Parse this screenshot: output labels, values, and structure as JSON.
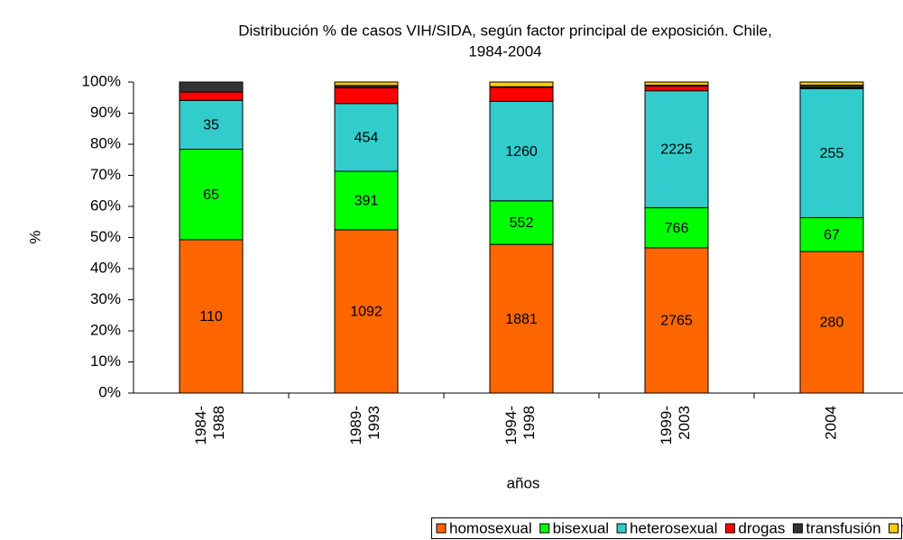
{
  "chart_data": {
    "type": "stacked_bar",
    "title": [
      "Distribución % de casos VIH/SIDA, según factor principal de exposición. Chile,",
      "1984-2004"
    ],
    "x_label": "años",
    "y_label": "%",
    "categories": [
      "1984-1988",
      "1989-1993",
      "1994-1998",
      "1999-2003",
      "2004"
    ],
    "series": [
      {
        "name": "homosexual",
        "color": "#ff6600",
        "values": [
          49.3,
          52.5,
          47.8,
          46.7,
          45.5
        ],
        "case_counts": [
          110,
          1092,
          1881,
          2765,
          280
        ]
      },
      {
        "name": "bisexual",
        "color": "#00ff00",
        "values": [
          29.1,
          18.8,
          14.0,
          12.9,
          10.9
        ],
        "case_counts": [
          65,
          391,
          552,
          766,
          67
        ]
      },
      {
        "name": "heterosexual",
        "color": "#33cccc",
        "values": [
          15.7,
          21.8,
          32.0,
          37.6,
          41.5
        ],
        "case_counts": [
          35,
          454,
          1260,
          2225,
          255
        ]
      },
      {
        "name": "drogas",
        "color": "#ff0000",
        "values": [
          2.7,
          5.1,
          4.5,
          1.5,
          0.3
        ]
      },
      {
        "name": "transfusión",
        "color": "#333333",
        "values": [
          3.2,
          0.7,
          0.2,
          0.3,
          0.8
        ]
      },
      {
        "name": "transmisión vertical",
        "color": "#ffcc00",
        "values": [
          0,
          1.1,
          1.5,
          1.0,
          1.0
        ]
      }
    ],
    "ylim": [
      0,
      100
    ],
    "yticks": [
      {
        "value": 0,
        "label": "0%"
      },
      {
        "value": 10,
        "label": "10%"
      },
      {
        "value": 20,
        "label": "20%"
      },
      {
        "value": 30,
        "label": "30%"
      },
      {
        "value": 40,
        "label": "40%"
      },
      {
        "value": 50,
        "label": "50%"
      },
      {
        "value": 60,
        "label": "60%"
      },
      {
        "value": 70,
        "label": "70%"
      },
      {
        "value": 80,
        "label": "80%"
      },
      {
        "value": 90,
        "label": "90%"
      },
      {
        "value": 100,
        "label": "100%"
      }
    ],
    "legend": "bottom"
  }
}
